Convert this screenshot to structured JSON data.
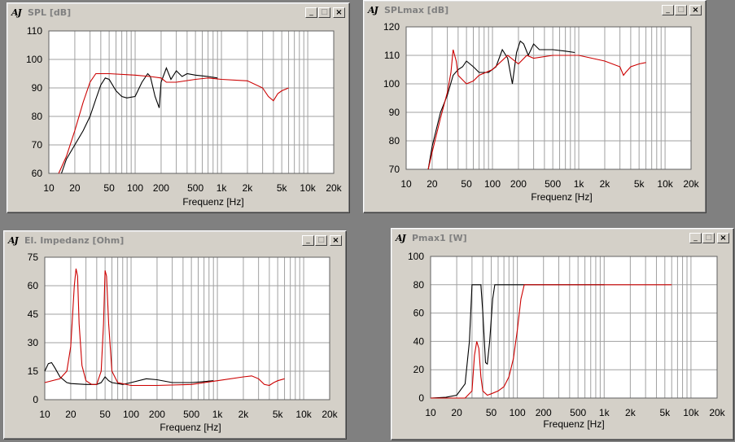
{
  "windows": [
    {
      "id": "spl",
      "title": "SPL [dB]",
      "xlabel": "Frequenz [Hz]",
      "chart_data": {
        "type": "line",
        "title": "SPL [dB]",
        "xlabel": "Frequenz [Hz]",
        "ylabel": "",
        "xscale": "log",
        "xlim": [
          10,
          20000
        ],
        "ylim": [
          60,
          110
        ],
        "xticks": [
          10,
          20,
          50,
          100,
          200,
          500,
          1000,
          2000,
          5000,
          10000,
          20000
        ],
        "xticklabels": [
          "10",
          "20",
          "50",
          "100",
          "200",
          "500",
          "1k",
          "2k",
          "5k",
          "10k",
          "20k"
        ],
        "yticks": [
          60,
          70,
          80,
          90,
          100,
          110
        ],
        "grid": true,
        "series": [
          {
            "color": "#000000",
            "points": [
              [
                14,
                60
              ],
              [
                16,
                65
              ],
              [
                20,
                70
              ],
              [
                25,
                75
              ],
              [
                30,
                80
              ],
              [
                35,
                86
              ],
              [
                40,
                91
              ],
              [
                45,
                93.5
              ],
              [
                50,
                93
              ],
              [
                60,
                89
              ],
              [
                70,
                87
              ],
              [
                80,
                86.5
              ],
              [
                100,
                87
              ],
              [
                120,
                92
              ],
              [
                140,
                95
              ],
              [
                150,
                94
              ],
              [
                170,
                87
              ],
              [
                190,
                83
              ],
              [
                200,
                92
              ],
              [
                230,
                97
              ],
              [
                260,
                93
              ],
              [
                300,
                96
              ],
              [
                350,
                94
              ],
              [
                400,
                95
              ],
              [
                500,
                94.5
              ],
              [
                700,
                94
              ],
              [
                900,
                93.5
              ]
            ]
          },
          {
            "color": "#cc0000",
            "points": [
              [
                13,
                60
              ],
              [
                16,
                66
              ],
              [
                20,
                75
              ],
              [
                25,
                85
              ],
              [
                30,
                92
              ],
              [
                35,
                95
              ],
              [
                50,
                95
              ],
              [
                100,
                94.5
              ],
              [
                150,
                94
              ],
              [
                200,
                93.5
              ],
              [
                230,
                92
              ],
              [
                300,
                92
              ],
              [
                500,
                93
              ],
              [
                700,
                93.5
              ],
              [
                1000,
                93
              ],
              [
                2000,
                92.5
              ],
              [
                3000,
                90
              ],
              [
                3500,
                87
              ],
              [
                4000,
                85.5
              ],
              [
                4500,
                88
              ],
              [
                5000,
                89
              ],
              [
                6000,
                90
              ]
            ]
          }
        ]
      }
    },
    {
      "id": "splmax",
      "title": "SPLmax [dB]",
      "xlabel": "Frequenz [Hz]",
      "chart_data": {
        "type": "line",
        "title": "SPLmax [dB]",
        "xlabel": "Frequenz [Hz]",
        "ylabel": "",
        "xscale": "log",
        "xlim": [
          10,
          20000
        ],
        "ylim": [
          70,
          120
        ],
        "xticks": [
          10,
          20,
          50,
          100,
          200,
          500,
          1000,
          2000,
          5000,
          10000,
          20000
        ],
        "xticklabels": [
          "10",
          "20",
          "50",
          "100",
          "200",
          "500",
          "1k",
          "2k",
          "5k",
          "10k",
          "20k"
        ],
        "yticks": [
          70,
          80,
          90,
          100,
          110,
          120
        ],
        "grid": true,
        "series": [
          {
            "color": "#000000",
            "points": [
              [
                18,
                70
              ],
              [
                20,
                78
              ],
              [
                25,
                90
              ],
              [
                30,
                96
              ],
              [
                35,
                103
              ],
              [
                40,
                105
              ],
              [
                45,
                106
              ],
              [
                50,
                108
              ],
              [
                60,
                106
              ],
              [
                70,
                104
              ],
              [
                90,
                104
              ],
              [
                110,
                106
              ],
              [
                130,
                112
              ],
              [
                150,
                109
              ],
              [
                170,
                100
              ],
              [
                190,
                111
              ],
              [
                210,
                115
              ],
              [
                230,
                114
              ],
              [
                260,
                110
              ],
              [
                300,
                114
              ],
              [
                350,
                112
              ],
              [
                500,
                112
              ],
              [
                700,
                111.5
              ],
              [
                900,
                111
              ]
            ]
          },
          {
            "color": "#cc0000",
            "points": [
              [
                18,
                70
              ],
              [
                20,
                76
              ],
              [
                25,
                88
              ],
              [
                30,
                97
              ],
              [
                33,
                104
              ],
              [
                35,
                112
              ],
              [
                38,
                108
              ],
              [
                40,
                103
              ],
              [
                50,
                100
              ],
              [
                60,
                101
              ],
              [
                70,
                103
              ],
              [
                100,
                105
              ],
              [
                150,
                110
              ],
              [
                200,
                107
              ],
              [
                250,
                110
              ],
              [
                300,
                109
              ],
              [
                500,
                110
              ],
              [
                1000,
                110
              ],
              [
                2000,
                108
              ],
              [
                3000,
                106
              ],
              [
                3300,
                103
              ],
              [
                3500,
                104
              ],
              [
                4000,
                106
              ],
              [
                5000,
                107
              ],
              [
                6000,
                107.5
              ]
            ]
          }
        ]
      }
    },
    {
      "id": "impedanz",
      "title": "El. Impedanz [Ohm]",
      "xlabel": "Frequenz [Hz]",
      "chart_data": {
        "type": "line",
        "title": "El. Impedanz [Ohm]",
        "xlabel": "Frequenz [Hz]",
        "ylabel": "",
        "xscale": "log",
        "xlim": [
          10,
          20000
        ],
        "ylim": [
          0,
          75
        ],
        "xticks": [
          10,
          20,
          50,
          100,
          200,
          500,
          1000,
          2000,
          5000,
          10000,
          20000
        ],
        "xticklabels": [
          "10",
          "20",
          "50",
          "100",
          "200",
          "500",
          "1k",
          "2k",
          "5k",
          "10k",
          "20k"
        ],
        "yticks": [
          0,
          15,
          30,
          45,
          60,
          75
        ],
        "grid": true,
        "series": [
          {
            "color": "#000000",
            "points": [
              [
                10,
                15
              ],
              [
                11,
                19
              ],
              [
                12,
                19.5
              ],
              [
                13,
                17
              ],
              [
                15,
                12
              ],
              [
                18,
                9
              ],
              [
                20,
                8.5
              ],
              [
                30,
                8
              ],
              [
                40,
                8
              ],
              [
                45,
                9
              ],
              [
                50,
                12
              ],
              [
                55,
                10
              ],
              [
                60,
                9
              ],
              [
                80,
                8
              ],
              [
                100,
                9
              ],
              [
                150,
                11
              ],
              [
                200,
                10.5
              ],
              [
                300,
                9
              ],
              [
                500,
                9
              ],
              [
                700,
                9.5
              ],
              [
                900,
                10
              ]
            ]
          },
          {
            "color": "#cc0000",
            "points": [
              [
                10,
                9
              ],
              [
                15,
                11
              ],
              [
                18,
                15
              ],
              [
                20,
                28
              ],
              [
                22,
                60
              ],
              [
                23,
                69
              ],
              [
                24,
                65
              ],
              [
                25,
                40
              ],
              [
                27,
                18
              ],
              [
                30,
                10
              ],
              [
                35,
                8
              ],
              [
                40,
                8
              ],
              [
                45,
                15
              ],
              [
                48,
                40
              ],
              [
                50,
                68
              ],
              [
                52,
                65
              ],
              [
                55,
                40
              ],
              [
                60,
                15
              ],
              [
                70,
                9
              ],
              [
                100,
                7.5
              ],
              [
                200,
                7.5
              ],
              [
                500,
                8
              ],
              [
                1000,
                10
              ],
              [
                2000,
                12
              ],
              [
                2500,
                12.5
              ],
              [
                3000,
                11
              ],
              [
                3500,
                8
              ],
              [
                4000,
                7.5
              ],
              [
                4500,
                9
              ],
              [
                5000,
                10
              ],
              [
                6000,
                11
              ]
            ]
          }
        ]
      }
    },
    {
      "id": "pmax",
      "title": "Pmax1 [W]",
      "xlabel": "Frequenz [Hz]",
      "chart_data": {
        "type": "line",
        "title": "Pmax1 [W]",
        "xlabel": "Frequenz [Hz]",
        "ylabel": "",
        "xscale": "log",
        "xlim": [
          10,
          20000
        ],
        "ylim": [
          0,
          100
        ],
        "xticks": [
          10,
          20,
          50,
          100,
          200,
          500,
          1000,
          2000,
          5000,
          10000,
          20000
        ],
        "xticklabels": [
          "10",
          "20",
          "50",
          "100",
          "200",
          "500",
          "1k",
          "2k",
          "5k",
          "10k",
          "20k"
        ],
        "yticks": [
          0,
          20,
          40,
          60,
          80,
          100
        ],
        "grid": true,
        "series": [
          {
            "color": "#000000",
            "points": [
              [
                10,
                0
              ],
              [
                15,
                0.5
              ],
              [
                20,
                2
              ],
              [
                25,
                10
              ],
              [
                28,
                40
              ],
              [
                30,
                80
              ],
              [
                35,
                80
              ],
              [
                38,
                80
              ],
              [
                40,
                60
              ],
              [
                43,
                25
              ],
              [
                45,
                24
              ],
              [
                48,
                40
              ],
              [
                52,
                70
              ],
              [
                55,
                80
              ],
              [
                60,
                80
              ],
              [
                100,
                80
              ],
              [
                200,
                80
              ],
              [
                500,
                80
              ],
              [
                1000,
                80
              ]
            ]
          },
          {
            "color": "#cc0000",
            "points": [
              [
                10,
                0
              ],
              [
                25,
                0
              ],
              [
                30,
                5
              ],
              [
                32,
                30
              ],
              [
                34,
                40
              ],
              [
                36,
                35
              ],
              [
                38,
                15
              ],
              [
                40,
                5
              ],
              [
                45,
                2
              ],
              [
                50,
                3
              ],
              [
                60,
                5
              ],
              [
                70,
                8
              ],
              [
                80,
                15
              ],
              [
                90,
                28
              ],
              [
                100,
                48
              ],
              [
                110,
                70
              ],
              [
                120,
                80
              ],
              [
                150,
                80
              ],
              [
                500,
                80
              ],
              [
                1000,
                80
              ],
              [
                2000,
                80
              ],
              [
                5000,
                80
              ],
              [
                6000,
                80
              ]
            ]
          }
        ]
      }
    }
  ],
  "icons": {
    "app": "sound-analyzer-logo",
    "minimize": "minimize-icon",
    "maximize": "maximize-icon",
    "close": "close-icon"
  },
  "window_controls": {
    "minimize": "_",
    "maximize": "□",
    "close": "×"
  },
  "app_icon_text": "AJ",
  "colors": {
    "black_series": "#000000",
    "red_series": "#cc0000",
    "grid": "#a0a0a0",
    "plot_bg": "#ffffff",
    "window_bg": "#d4d0c8",
    "desktop": "#808080"
  }
}
